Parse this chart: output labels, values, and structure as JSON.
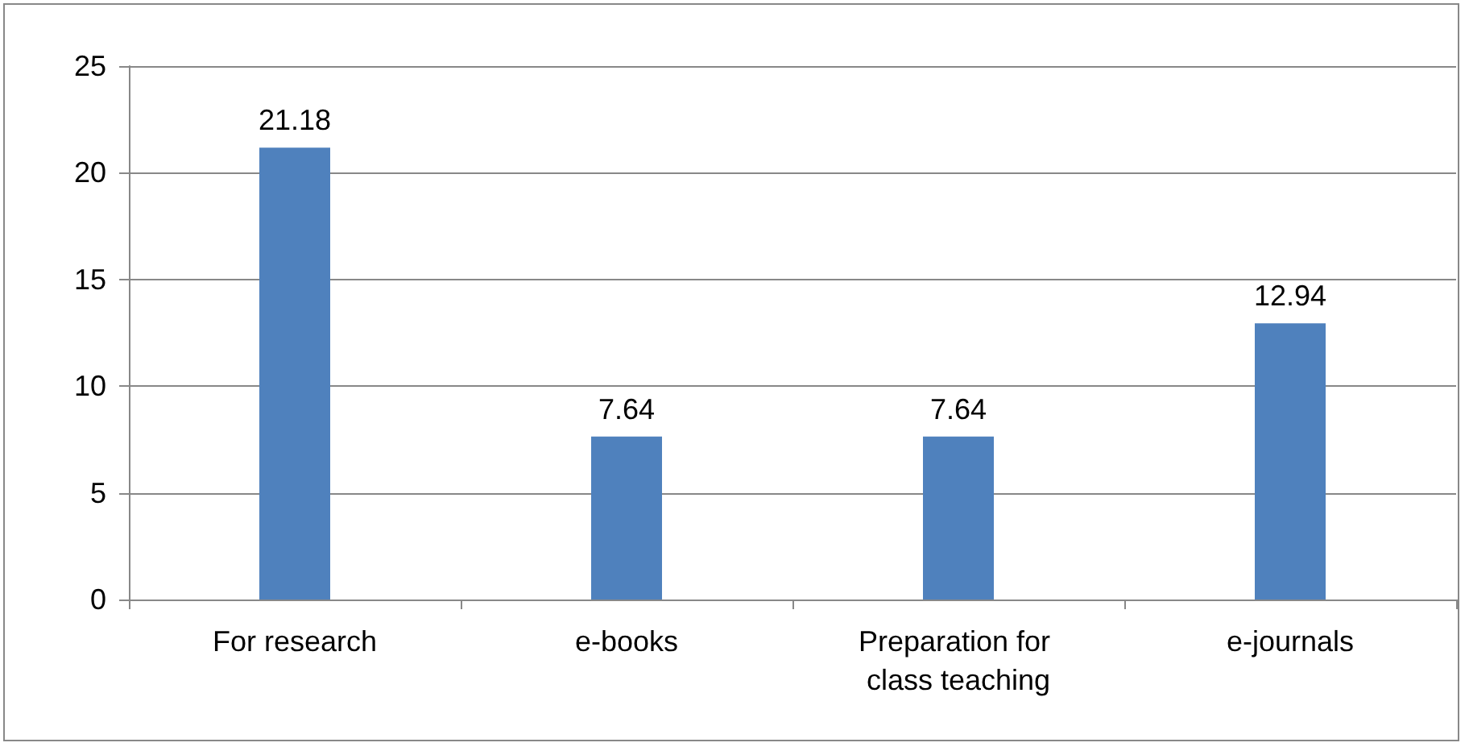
{
  "chart_data": {
    "type": "bar",
    "categories": [
      "For research",
      "e-books",
      "Preparation for class teaching",
      "e-journals"
    ],
    "values": [
      21.18,
      7.64,
      7.64,
      12.94
    ],
    "color": "#4f81bd",
    "ylim": [
      0,
      25
    ],
    "yticks": [
      0,
      5,
      10,
      15,
      20,
      25
    ],
    "grid": "y",
    "data_labels": true
  }
}
